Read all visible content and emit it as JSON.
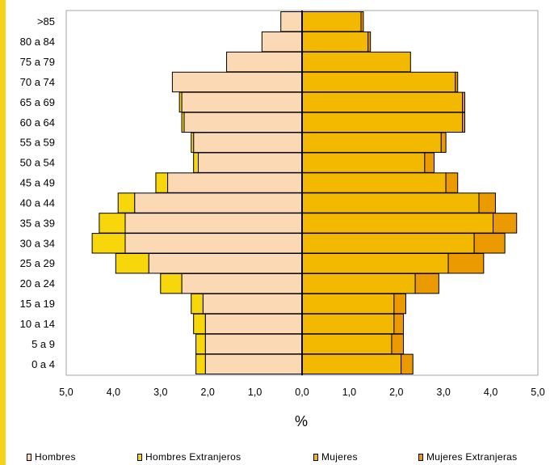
{
  "chart_data": {
    "type": "bar",
    "orientation": "horizontal",
    "subtype": "population-pyramid",
    "xlabel": "%",
    "xlim": [
      -5,
      5
    ],
    "x_ticks": [
      "5,0",
      "4,0",
      "3,0",
      "2,0",
      "1,0",
      "0,0",
      "1,0",
      "2,0",
      "3,0",
      "4,0",
      "5,0"
    ],
    "categories": [
      "0 a 4",
      "5 a 9",
      "10 a 14",
      "15 a 19",
      "20 a 24",
      "25 a 29",
      "30 a 34",
      "35 a 39",
      "40 a 44",
      "45 a 49",
      "50 a 54",
      "55 a 59",
      "60 a 64",
      "65 a 69",
      "70 a 74",
      "75 a 79",
      "80 a 84",
      ">85"
    ],
    "series": [
      {
        "name": "Hombres",
        "side": "left",
        "color": "#fbd9b5",
        "values": [
          2.05,
          2.05,
          2.05,
          2.1,
          2.55,
          3.25,
          3.75,
          3.75,
          3.55,
          2.85,
          2.2,
          2.3,
          2.5,
          2.55,
          2.75,
          1.6,
          0.85,
          0.45
        ]
      },
      {
        "name": "Hombres Extranjeros",
        "side": "left",
        "color": "#f8d60c",
        "values": [
          0.2,
          0.2,
          0.25,
          0.25,
          0.45,
          0.7,
          0.7,
          0.55,
          0.35,
          0.25,
          0.1,
          0.05,
          0.05,
          0.05,
          0.0,
          0.0,
          0.0,
          0.0
        ]
      },
      {
        "name": "Mujeres",
        "side": "right",
        "color": "#f3b800",
        "values": [
          2.1,
          1.9,
          1.95,
          1.95,
          2.4,
          3.1,
          3.65,
          4.05,
          3.75,
          3.05,
          2.6,
          2.95,
          3.4,
          3.4,
          3.25,
          2.3,
          1.4,
          1.25
        ]
      },
      {
        "name": "Mujeres Extranjeras",
        "side": "right",
        "color": "#eb9a00",
        "values": [
          0.25,
          0.25,
          0.2,
          0.25,
          0.5,
          0.75,
          0.65,
          0.5,
          0.35,
          0.25,
          0.2,
          0.1,
          0.05,
          0.05,
          0.05,
          0.0,
          0.05,
          0.05
        ]
      }
    ],
    "legend_position": "bottom",
    "grid": false
  },
  "colors": {
    "accent_bar": "#f6d31a",
    "frame": "#a6a6a6"
  }
}
